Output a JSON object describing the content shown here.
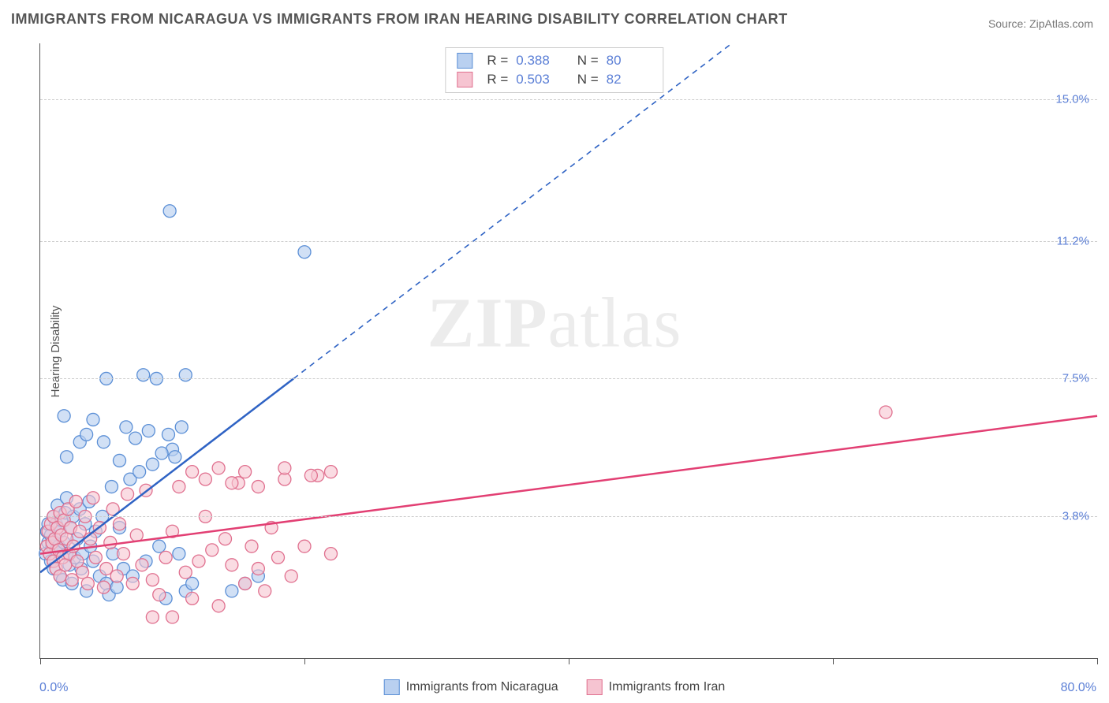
{
  "title": "IMMIGRANTS FROM NICARAGUA VS IMMIGRANTS FROM IRAN HEARING DISABILITY CORRELATION CHART",
  "source_prefix": "Source: ",
  "source_name": "ZipAtlas.com",
  "ylabel": "Hearing Disability",
  "watermark_bold": "ZIP",
  "watermark_rest": "atlas",
  "chart": {
    "type": "scatter",
    "background_color": "#ffffff",
    "grid_color": "#cccccc",
    "axis_color": "#555555",
    "xlim": [
      0,
      80
    ],
    "ylim": [
      0,
      16.5
    ],
    "xaxis_min_label": "0.0%",
    "xaxis_max_label": "80.0%",
    "xticks": [
      0,
      20,
      40,
      60,
      80
    ],
    "ygrid": [
      {
        "v": 3.8,
        "label": "3.8%"
      },
      {
        "v": 7.5,
        "label": "7.5%"
      },
      {
        "v": 11.2,
        "label": "11.2%"
      },
      {
        "v": 15.0,
        "label": "15.0%"
      }
    ],
    "series": [
      {
        "name": "Immigrants from Nicaragua",
        "color_fill": "#b9d0f0",
        "color_stroke": "#5b8fd6",
        "line_color": "#2f63c4",
        "marker_radius": 8,
        "marker_opacity": 0.65,
        "r_label": "R = ",
        "r_value": "0.388",
        "n_label": "N = ",
        "n_value": "80",
        "trend": {
          "x1": 0,
          "y1": 2.3,
          "x2": 80,
          "y2": 24.0
        },
        "points": [
          [
            0.4,
            2.8
          ],
          [
            0.5,
            3.4
          ],
          [
            0.6,
            3.1
          ],
          [
            0.6,
            3.6
          ],
          [
            0.8,
            2.6
          ],
          [
            0.8,
            3.3
          ],
          [
            0.9,
            3.0
          ],
          [
            1.0,
            3.8
          ],
          [
            1.0,
            2.4
          ],
          [
            1.1,
            3.2
          ],
          [
            1.2,
            3.6
          ],
          [
            1.2,
            2.9
          ],
          [
            1.3,
            4.1
          ],
          [
            1.4,
            3.0
          ],
          [
            1.5,
            2.2
          ],
          [
            1.5,
            3.4
          ],
          [
            1.6,
            3.7
          ],
          [
            1.7,
            2.1
          ],
          [
            1.8,
            3.1
          ],
          [
            1.9,
            3.9
          ],
          [
            2.0,
            2.8
          ],
          [
            2.0,
            4.3
          ],
          [
            2.2,
            2.5
          ],
          [
            2.3,
            3.5
          ],
          [
            2.4,
            2.0
          ],
          [
            2.5,
            3.8
          ],
          [
            2.6,
            2.7
          ],
          [
            2.8,
            3.2
          ],
          [
            3.0,
            4.0
          ],
          [
            3.1,
            2.4
          ],
          [
            3.2,
            2.8
          ],
          [
            3.4,
            3.6
          ],
          [
            3.5,
            1.8
          ],
          [
            3.7,
            4.2
          ],
          [
            3.8,
            3.0
          ],
          [
            4.0,
            2.6
          ],
          [
            4.2,
            3.4
          ],
          [
            4.5,
            2.2
          ],
          [
            4.7,
            3.8
          ],
          [
            5.0,
            2.0
          ],
          [
            5.2,
            1.7
          ],
          [
            5.5,
            2.8
          ],
          [
            5.8,
            1.9
          ],
          [
            6.0,
            3.5
          ],
          [
            6.3,
            2.4
          ],
          [
            6.8,
            4.8
          ],
          [
            7.0,
            2.2
          ],
          [
            7.5,
            5.0
          ],
          [
            8.0,
            2.6
          ],
          [
            8.5,
            5.2
          ],
          [
            9.0,
            3.0
          ],
          [
            9.5,
            1.6
          ],
          [
            10.0,
            5.6
          ],
          [
            10.5,
            2.8
          ],
          [
            11.0,
            1.8
          ],
          [
            3.0,
            5.8
          ],
          [
            4.0,
            6.4
          ],
          [
            5.0,
            7.5
          ],
          [
            1.8,
            6.5
          ],
          [
            3.5,
            6.0
          ],
          [
            6.5,
            6.2
          ],
          [
            7.2,
            5.9
          ],
          [
            8.2,
            6.1
          ],
          [
            9.2,
            5.5
          ],
          [
            2.0,
            5.4
          ],
          [
            4.8,
            5.8
          ],
          [
            6.0,
            5.3
          ],
          [
            9.7,
            6.0
          ],
          [
            10.2,
            5.4
          ],
          [
            10.7,
            6.2
          ],
          [
            7.8,
            7.6
          ],
          [
            8.8,
            7.5
          ],
          [
            5.4,
            4.6
          ],
          [
            11.0,
            7.6
          ],
          [
            11.5,
            2.0
          ],
          [
            15.5,
            2.0
          ],
          [
            16.5,
            2.2
          ],
          [
            9.8,
            12.0
          ],
          [
            20.0,
            10.9
          ],
          [
            14.5,
            1.8
          ]
        ]
      },
      {
        "name": "Immigrants from Iran",
        "color_fill": "#f6c4d1",
        "color_stroke": "#e0708f",
        "line_color": "#e23f73",
        "marker_radius": 8,
        "marker_opacity": 0.6,
        "r_label": "R = ",
        "r_value": "0.503",
        "n_label": "N = ",
        "n_value": "82",
        "trend": {
          "x1": 0,
          "y1": 2.8,
          "x2": 80,
          "y2": 6.5
        },
        "points": [
          [
            0.5,
            3.0
          ],
          [
            0.6,
            3.4
          ],
          [
            0.7,
            2.8
          ],
          [
            0.8,
            3.6
          ],
          [
            0.9,
            3.1
          ],
          [
            1.0,
            2.6
          ],
          [
            1.0,
            3.8
          ],
          [
            1.1,
            3.2
          ],
          [
            1.2,
            2.4
          ],
          [
            1.3,
            3.5
          ],
          [
            1.4,
            2.9
          ],
          [
            1.5,
            3.9
          ],
          [
            1.5,
            2.2
          ],
          [
            1.6,
            3.3
          ],
          [
            1.7,
            2.7
          ],
          [
            1.8,
            3.7
          ],
          [
            1.9,
            2.5
          ],
          [
            2.0,
            3.2
          ],
          [
            2.1,
            4.0
          ],
          [
            2.2,
            2.8
          ],
          [
            2.3,
            3.5
          ],
          [
            2.4,
            2.1
          ],
          [
            2.5,
            3.0
          ],
          [
            2.7,
            4.2
          ],
          [
            2.8,
            2.6
          ],
          [
            3.0,
            3.4
          ],
          [
            3.2,
            2.3
          ],
          [
            3.4,
            3.8
          ],
          [
            3.6,
            2.0
          ],
          [
            3.8,
            3.2
          ],
          [
            4.0,
            4.3
          ],
          [
            4.2,
            2.7
          ],
          [
            4.5,
            3.5
          ],
          [
            4.8,
            1.9
          ],
          [
            5.0,
            2.4
          ],
          [
            5.3,
            3.1
          ],
          [
            5.5,
            4.0
          ],
          [
            5.8,
            2.2
          ],
          [
            6.0,
            3.6
          ],
          [
            6.3,
            2.8
          ],
          [
            6.6,
            4.4
          ],
          [
            7.0,
            2.0
          ],
          [
            7.3,
            3.3
          ],
          [
            7.7,
            2.5
          ],
          [
            8.0,
            4.5
          ],
          [
            8.5,
            2.1
          ],
          [
            9.0,
            1.7
          ],
          [
            9.5,
            2.7
          ],
          [
            10.0,
            3.4
          ],
          [
            10.5,
            4.6
          ],
          [
            11.0,
            2.3
          ],
          [
            11.5,
            1.6
          ],
          [
            12.0,
            2.6
          ],
          [
            12.5,
            3.8
          ],
          [
            13.0,
            2.9
          ],
          [
            13.5,
            1.4
          ],
          [
            14.0,
            3.2
          ],
          [
            14.5,
            2.5
          ],
          [
            15.0,
            4.7
          ],
          [
            15.5,
            2.0
          ],
          [
            16.0,
            3.0
          ],
          [
            16.5,
            2.4
          ],
          [
            17.0,
            1.8
          ],
          [
            17.5,
            3.5
          ],
          [
            18.0,
            2.7
          ],
          [
            18.5,
            4.8
          ],
          [
            19.0,
            2.2
          ],
          [
            20.0,
            3.0
          ],
          [
            21.0,
            4.9
          ],
          [
            22.0,
            2.8
          ],
          [
            11.5,
            5.0
          ],
          [
            12.5,
            4.8
          ],
          [
            13.5,
            5.1
          ],
          [
            14.5,
            4.7
          ],
          [
            15.5,
            5.0
          ],
          [
            16.5,
            4.6
          ],
          [
            18.5,
            5.1
          ],
          [
            20.5,
            4.9
          ],
          [
            22.0,
            5.0
          ],
          [
            8.5,
            1.1
          ],
          [
            10.0,
            1.1
          ],
          [
            64.0,
            6.6
          ]
        ]
      }
    ]
  }
}
